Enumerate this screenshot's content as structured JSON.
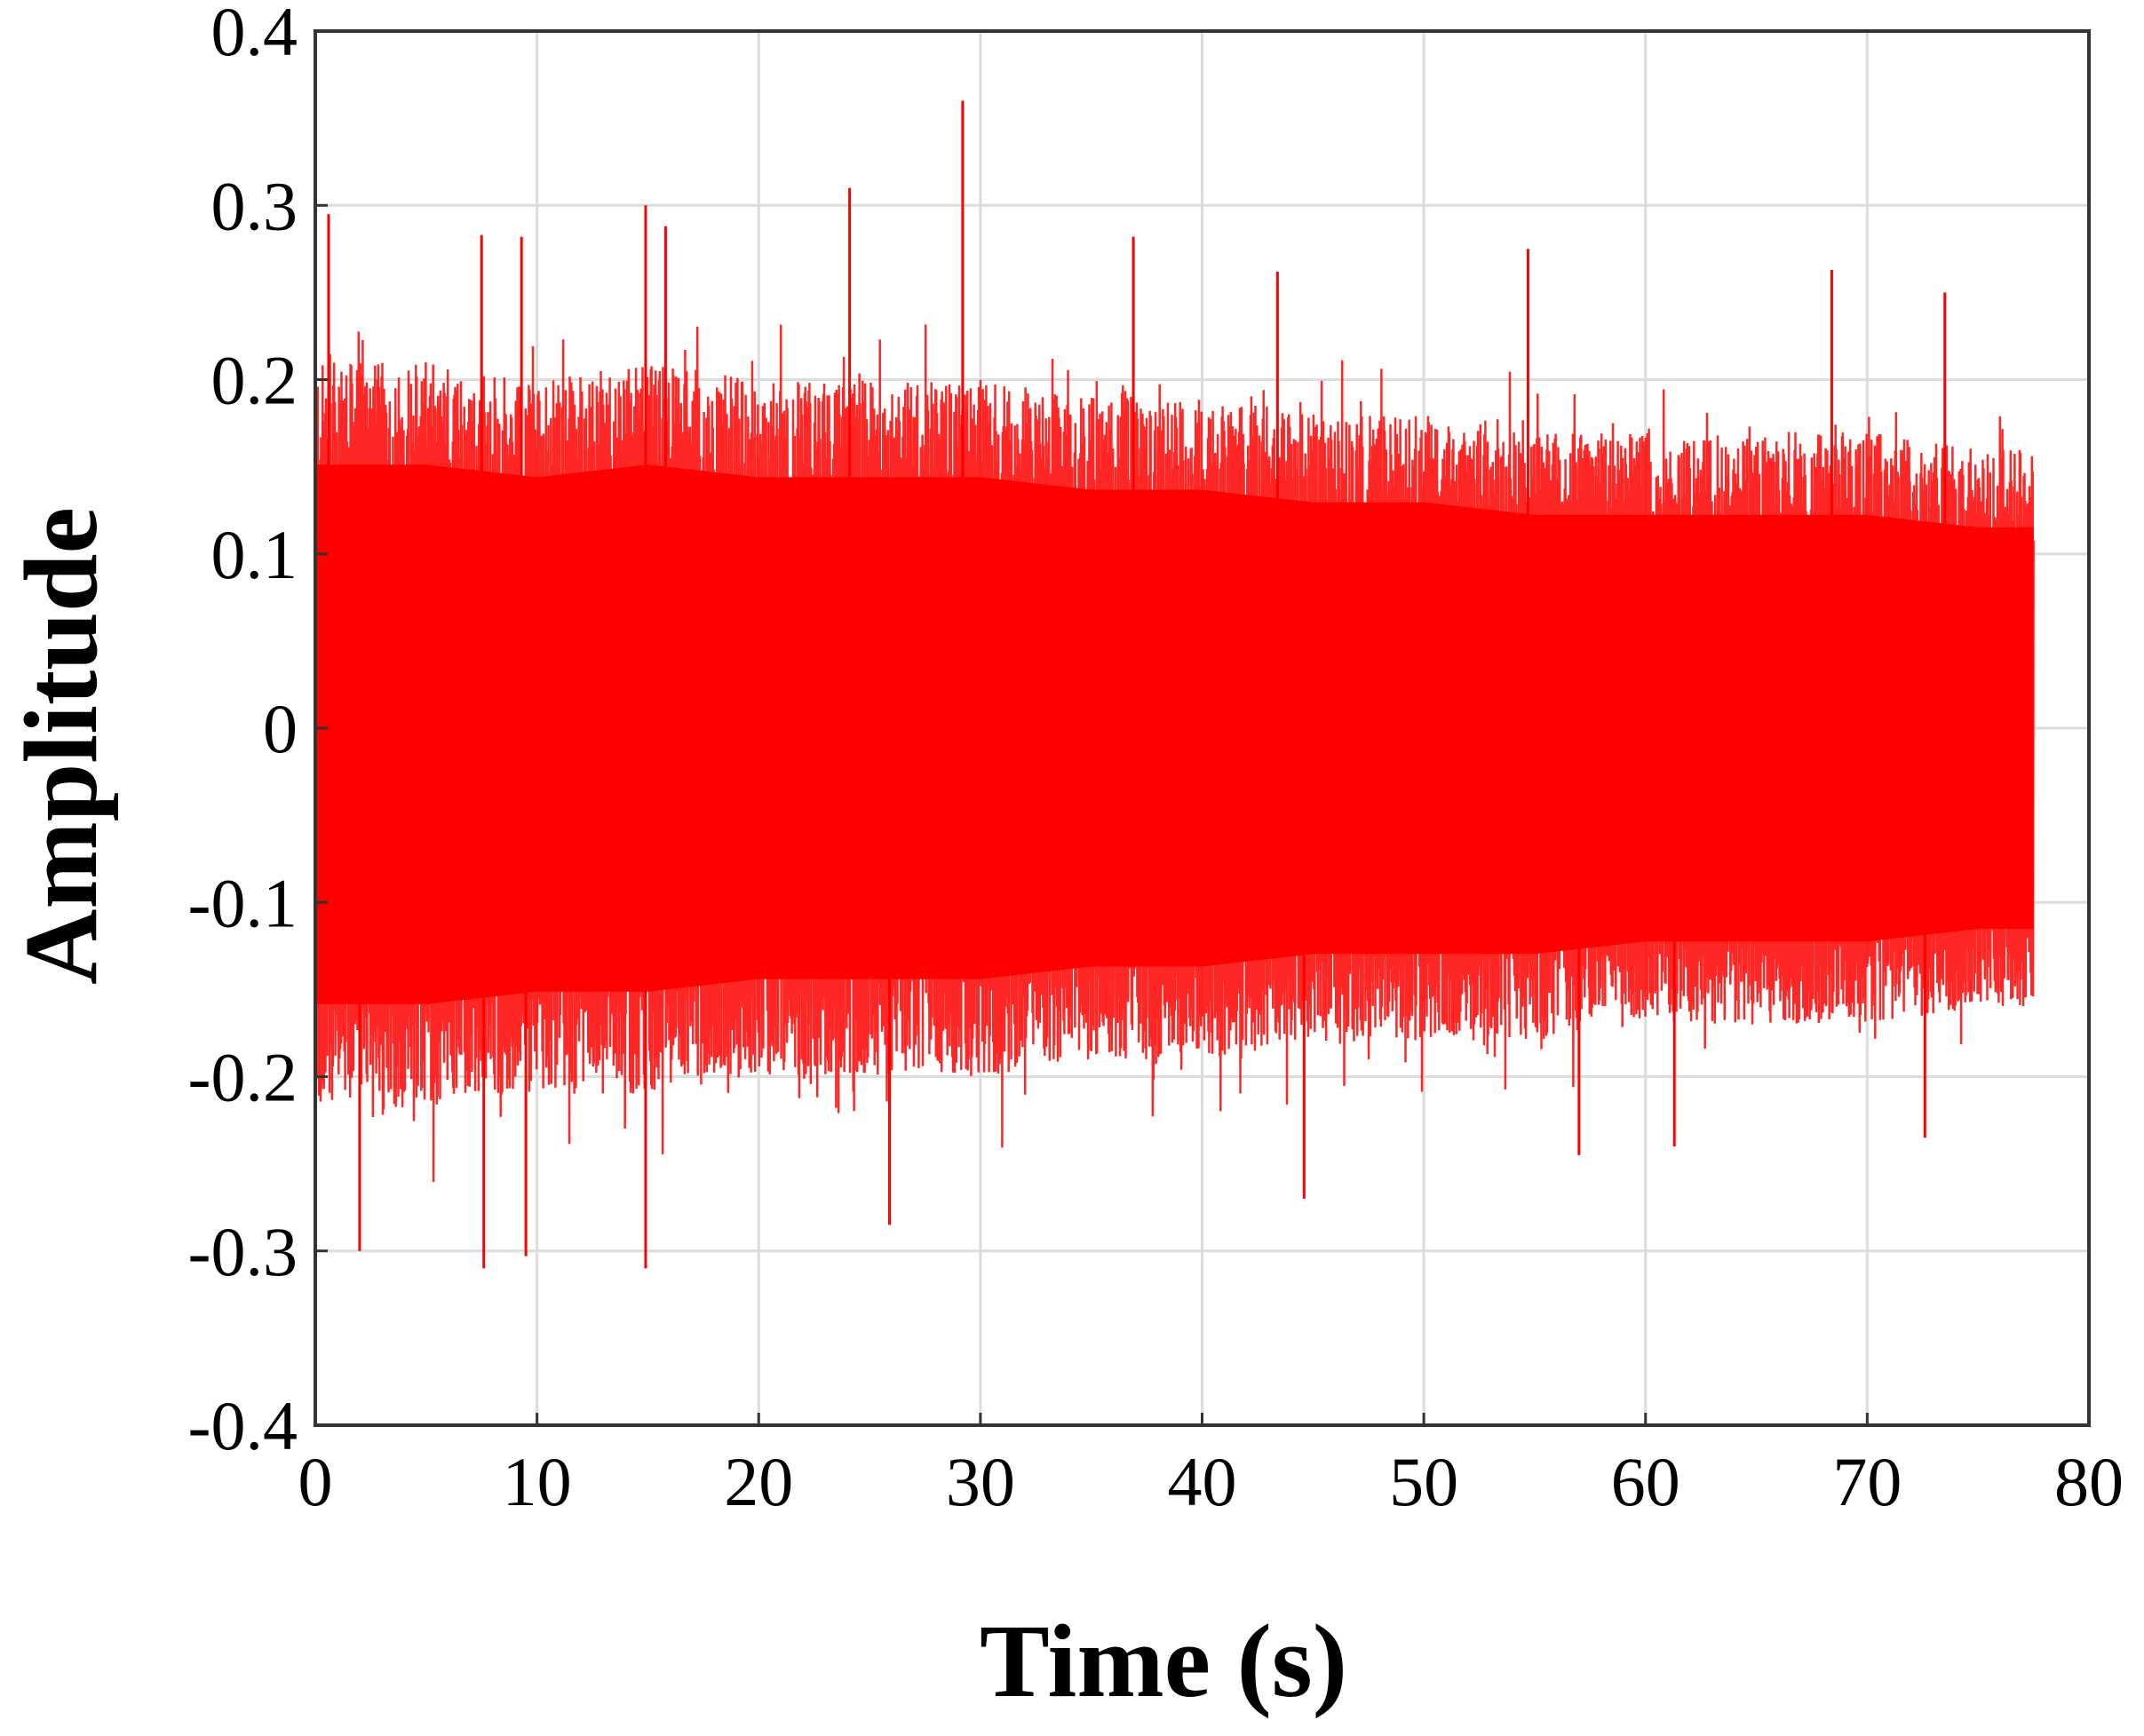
{
  "chart_data": {
    "type": "line",
    "xlabel": "Time (s)",
    "ylabel": "Amplitude",
    "xlim": [
      0,
      80
    ],
    "ylim": [
      -0.4,
      0.4
    ],
    "xticks": [
      0,
      10,
      20,
      30,
      40,
      50,
      60,
      70,
      80
    ],
    "xtick_labels": [
      "0",
      "10",
      "20",
      "30",
      "40",
      "50",
      "60",
      "70",
      "80"
    ],
    "yticks": [
      0.4,
      0.3,
      0.2,
      0.1,
      0,
      -0.1,
      -0.2,
      -0.3,
      -0.4
    ],
    "ytick_labels": [
      "0.4",
      "0.3",
      "0.2",
      "0.1",
      "0",
      "-0.1",
      "-0.2",
      "-0.3",
      "-0.4"
    ],
    "grid": true,
    "series": [
      {
        "color": "#ff0000",
        "description_values": "dense noise signal",
        "x_start": 0,
        "x_end": 77.5,
        "envelope": {
          "x": [
            0,
            5,
            10,
            15,
            20,
            25,
            30,
            35,
            40,
            45,
            50,
            55,
            60,
            65,
            70,
            75,
            77.5
          ],
          "upper": [
            0.21,
            0.21,
            0.2,
            0.21,
            0.2,
            0.2,
            0.2,
            0.19,
            0.19,
            0.18,
            0.18,
            0.17,
            0.17,
            0.17,
            0.17,
            0.16,
            0.16
          ],
          "lower": [
            -0.22,
            -0.22,
            -0.21,
            -0.21,
            -0.2,
            -0.2,
            -0.2,
            -0.19,
            -0.19,
            -0.18,
            -0.18,
            -0.18,
            -0.17,
            -0.17,
            -0.17,
            -0.16,
            -0.16
          ]
        },
        "peaks": [
          {
            "x": 0.6,
            "y": 0.295
          },
          {
            "x": 7.5,
            "y": 0.283
          },
          {
            "x": 9.3,
            "y": 0.282
          },
          {
            "x": 14.9,
            "y": 0.3
          },
          {
            "x": 15.8,
            "y": 0.288
          },
          {
            "x": 24.1,
            "y": 0.31
          },
          {
            "x": 29.2,
            "y": 0.36
          },
          {
            "x": 36.9,
            "y": 0.282
          },
          {
            "x": 43.4,
            "y": 0.262
          },
          {
            "x": 54.7,
            "y": 0.275
          },
          {
            "x": 68.4,
            "y": 0.263
          },
          {
            "x": 73.5,
            "y": 0.25
          },
          {
            "x": 2.0,
            "y": -0.3
          },
          {
            "x": 7.6,
            "y": -0.31
          },
          {
            "x": 9.5,
            "y": -0.303
          },
          {
            "x": 14.9,
            "y": -0.31
          },
          {
            "x": 25.9,
            "y": -0.285
          },
          {
            "x": 44.6,
            "y": -0.27
          },
          {
            "x": 57.0,
            "y": -0.245
          },
          {
            "x": 61.3,
            "y": -0.24
          },
          {
            "x": 72.6,
            "y": -0.235
          }
        ]
      }
    ]
  }
}
